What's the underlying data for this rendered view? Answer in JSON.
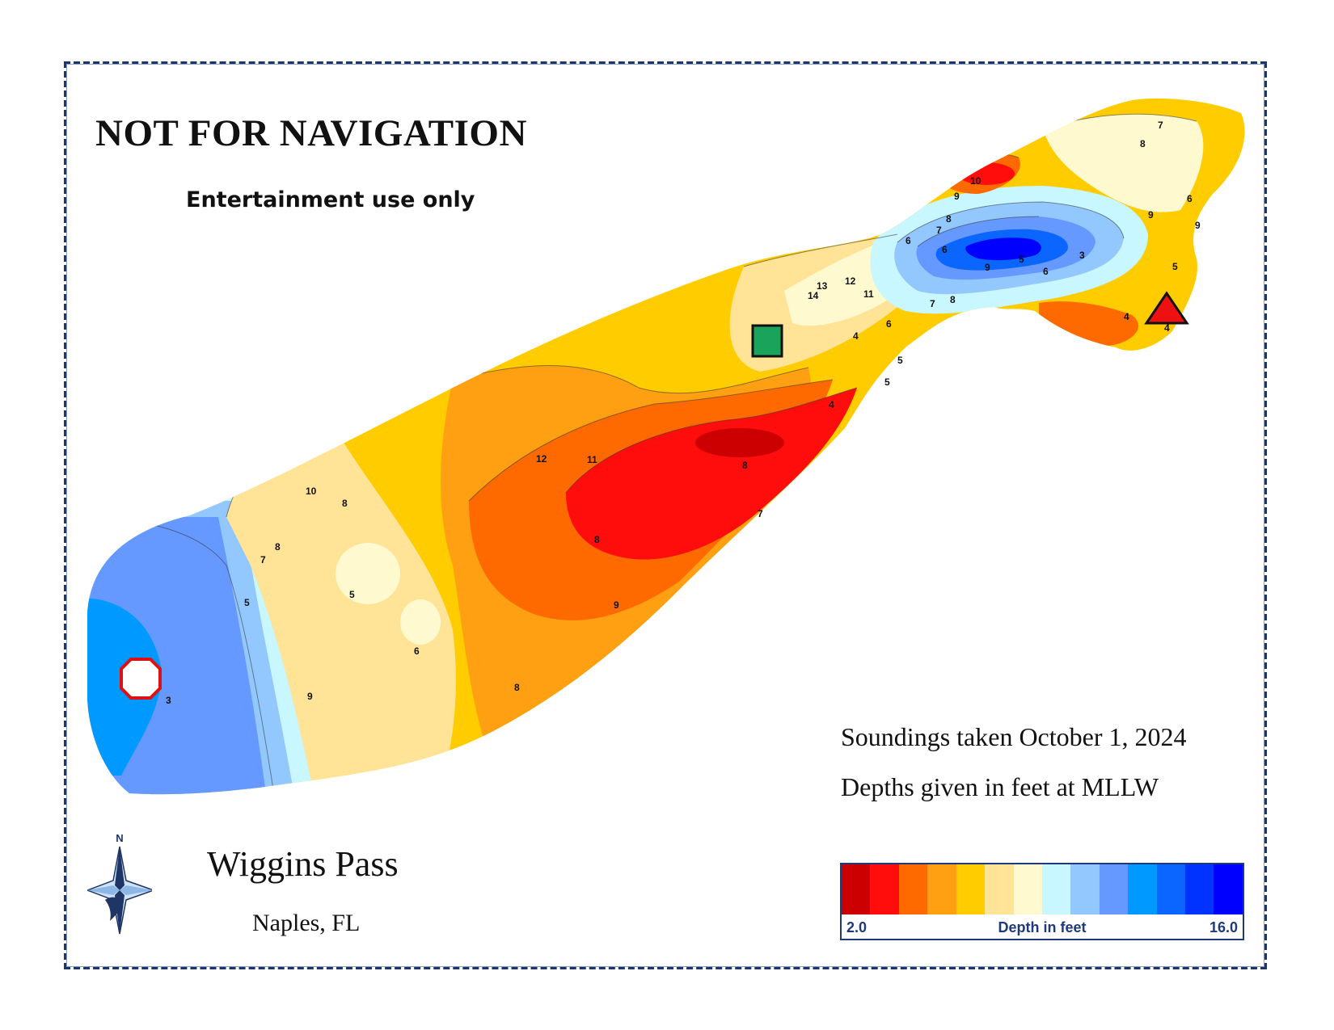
{
  "warning": {
    "title": "NOT FOR NAVIGATION",
    "subtitle": "Entertainment use only"
  },
  "location": {
    "name": "Wiggins Pass",
    "city": "Naples, FL"
  },
  "notes": {
    "soundings": "Soundings taken October 1, 2024",
    "datum": "Depths given in feet at MLLW"
  },
  "legend": {
    "min_label": "2.0",
    "max_label": "16.0",
    "title": "Depth in feet",
    "colors": [
      "#cc0000",
      "#ff0d0d",
      "#ff6a00",
      "#ff9f12",
      "#ffcc00",
      "#ffe396",
      "#fff9cf",
      "#c8f7ff",
      "#93c8ff",
      "#6699ff",
      "#0099ff",
      "#0a66ff",
      "#0033ff",
      "#0000ff"
    ]
  },
  "compass": {
    "north_label": "N"
  },
  "markers": [
    {
      "name": "green-square-marker",
      "shape": "square",
      "color": "#1aa35a"
    },
    {
      "name": "red-triangle-marker",
      "shape": "triangle",
      "color": "#ee1111"
    },
    {
      "name": "red-octagon-marker",
      "shape": "octagon",
      "color": "#ffffff"
    }
  ],
  "contour_labels": [
    "7",
    "8",
    "9",
    "6",
    "5",
    "6",
    "4",
    "5",
    "4",
    "6",
    "7",
    "8",
    "9",
    "10",
    "11",
    "12",
    "13",
    "14",
    "9",
    "8",
    "7",
    "6",
    "5",
    "3",
    "4",
    "5",
    "4",
    "6",
    "9",
    "8",
    "7",
    "8",
    "9",
    "11",
    "12",
    "10",
    "8",
    "8",
    "7",
    "5",
    "9",
    "3",
    "5",
    "6",
    "8"
  ]
}
